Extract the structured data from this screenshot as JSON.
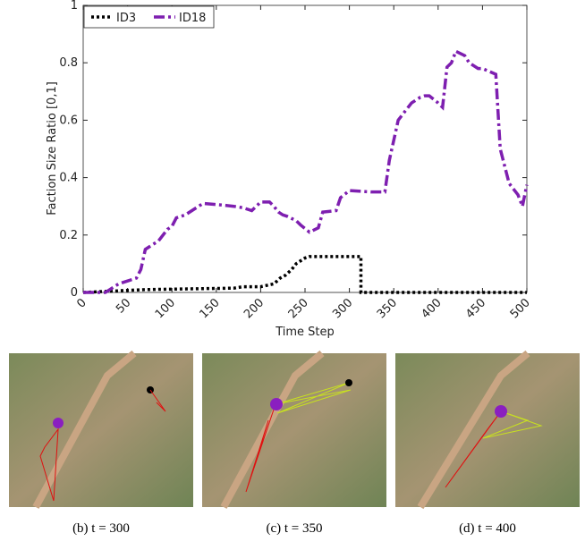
{
  "chart_data": {
    "type": "line",
    "xlabel": "Time Step",
    "ylabel": "Faction Size Ratio [0,1]",
    "xlim": [
      0,
      500
    ],
    "xticks": [
      0,
      50,
      100,
      150,
      200,
      250,
      300,
      350,
      400,
      450,
      500
    ],
    "ylim": [
      0,
      1
    ],
    "yticks": [
      0,
      0.2,
      0.4,
      0.6,
      0.8,
      1
    ],
    "legend": "upper-left",
    "series": [
      {
        "name": "ID3",
        "color": "#000000",
        "dash": "dotted",
        "x": [
          0,
          70,
          170,
          180,
          200,
          215,
          222,
          228,
          235,
          240,
          250,
          255,
          313,
          313,
          500
        ],
        "values": [
          0,
          0.01,
          0.015,
          0.02,
          0.02,
          0.03,
          0.05,
          0.06,
          0.08,
          0.1,
          0.12,
          0.125,
          0.125,
          0,
          0
        ]
      },
      {
        "name": "ID18",
        "color": "#7e1fb0",
        "dash": "dashdot",
        "x": [
          0,
          25,
          30,
          40,
          50,
          60,
          65,
          70,
          75,
          85,
          90,
          95,
          100,
          105,
          115,
          120,
          130,
          135,
          155,
          170,
          180,
          190,
          200,
          210,
          215,
          220,
          225,
          230,
          240,
          245,
          255,
          265,
          270,
          285,
          290,
          300,
          325,
          330,
          340,
          345,
          355,
          370,
          380,
          385,
          390,
          400,
          405,
          410,
          415,
          420,
          430,
          435,
          445,
          450,
          465,
          470,
          480,
          490,
          495,
          500
        ],
        "values": [
          0,
          0,
          0.01,
          0.03,
          0.04,
          0.05,
          0.08,
          0.15,
          0.16,
          0.18,
          0.2,
          0.22,
          0.23,
          0.26,
          0.27,
          0.28,
          0.3,
          0.31,
          0.305,
          0.3,
          0.295,
          0.285,
          0.315,
          0.315,
          0.3,
          0.28,
          0.27,
          0.265,
          0.25,
          0.235,
          0.21,
          0.225,
          0.28,
          0.285,
          0.33,
          0.355,
          0.35,
          0.35,
          0.35,
          0.46,
          0.6,
          0.66,
          0.68,
          0.685,
          0.685,
          0.66,
          0.645,
          0.785,
          0.8,
          0.84,
          0.825,
          0.8,
          0.78,
          0.78,
          0.76,
          0.5,
          0.38,
          0.34,
          0.3,
          0.375
        ]
      }
    ]
  },
  "captions": [
    "(b) t = 300",
    "(c) t = 350",
    "(d) t = 400"
  ]
}
